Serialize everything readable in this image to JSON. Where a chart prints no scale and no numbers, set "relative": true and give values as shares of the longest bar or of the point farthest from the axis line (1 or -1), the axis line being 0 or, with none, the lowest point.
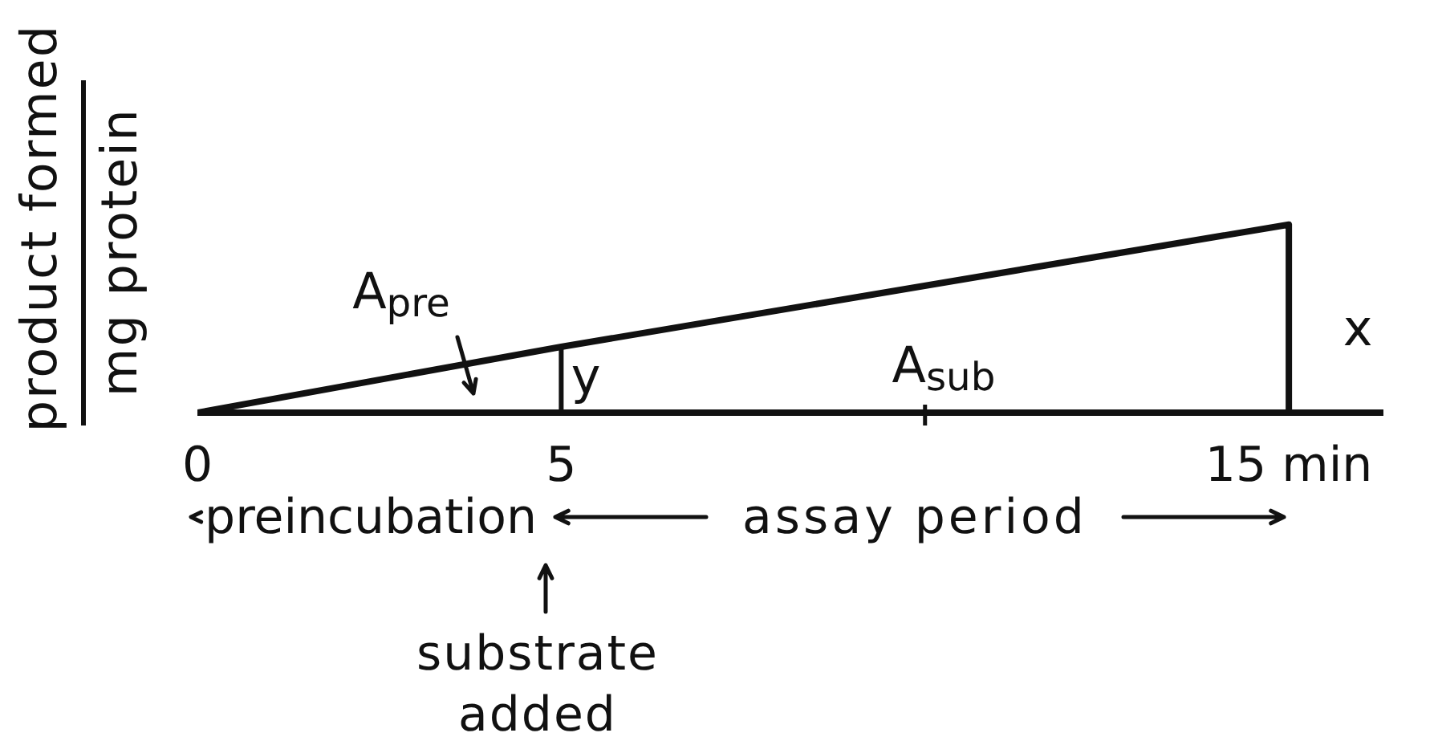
{
  "chart_data": {
    "type": "line",
    "relative": true,
    "xlim": [
      0,
      16.3
    ],
    "xticks": [
      0,
      5,
      {
        "value": 10,
        "label": null
      },
      {
        "value": 15,
        "label": "15 min"
      }
    ],
    "ylabel": "product formed\nmg protein",
    "marker": "none",
    "series": [
      {
        "x": [
          0,
          5,
          15,
          15
        ],
        "values": [
          0,
          0.35,
          1,
          0
        ],
        "color": "#111111"
      },
      {
        "x": [
          5,
          5
        ],
        "values": [
          0,
          0.35
        ],
        "color": "#111111"
      }
    ],
    "annotations": [
      "A$_{pre}$",
      "y",
      "A$_{sub}$",
      "x",
      "preincubation",
      "assay period",
      "substrate added"
    ]
  }
}
